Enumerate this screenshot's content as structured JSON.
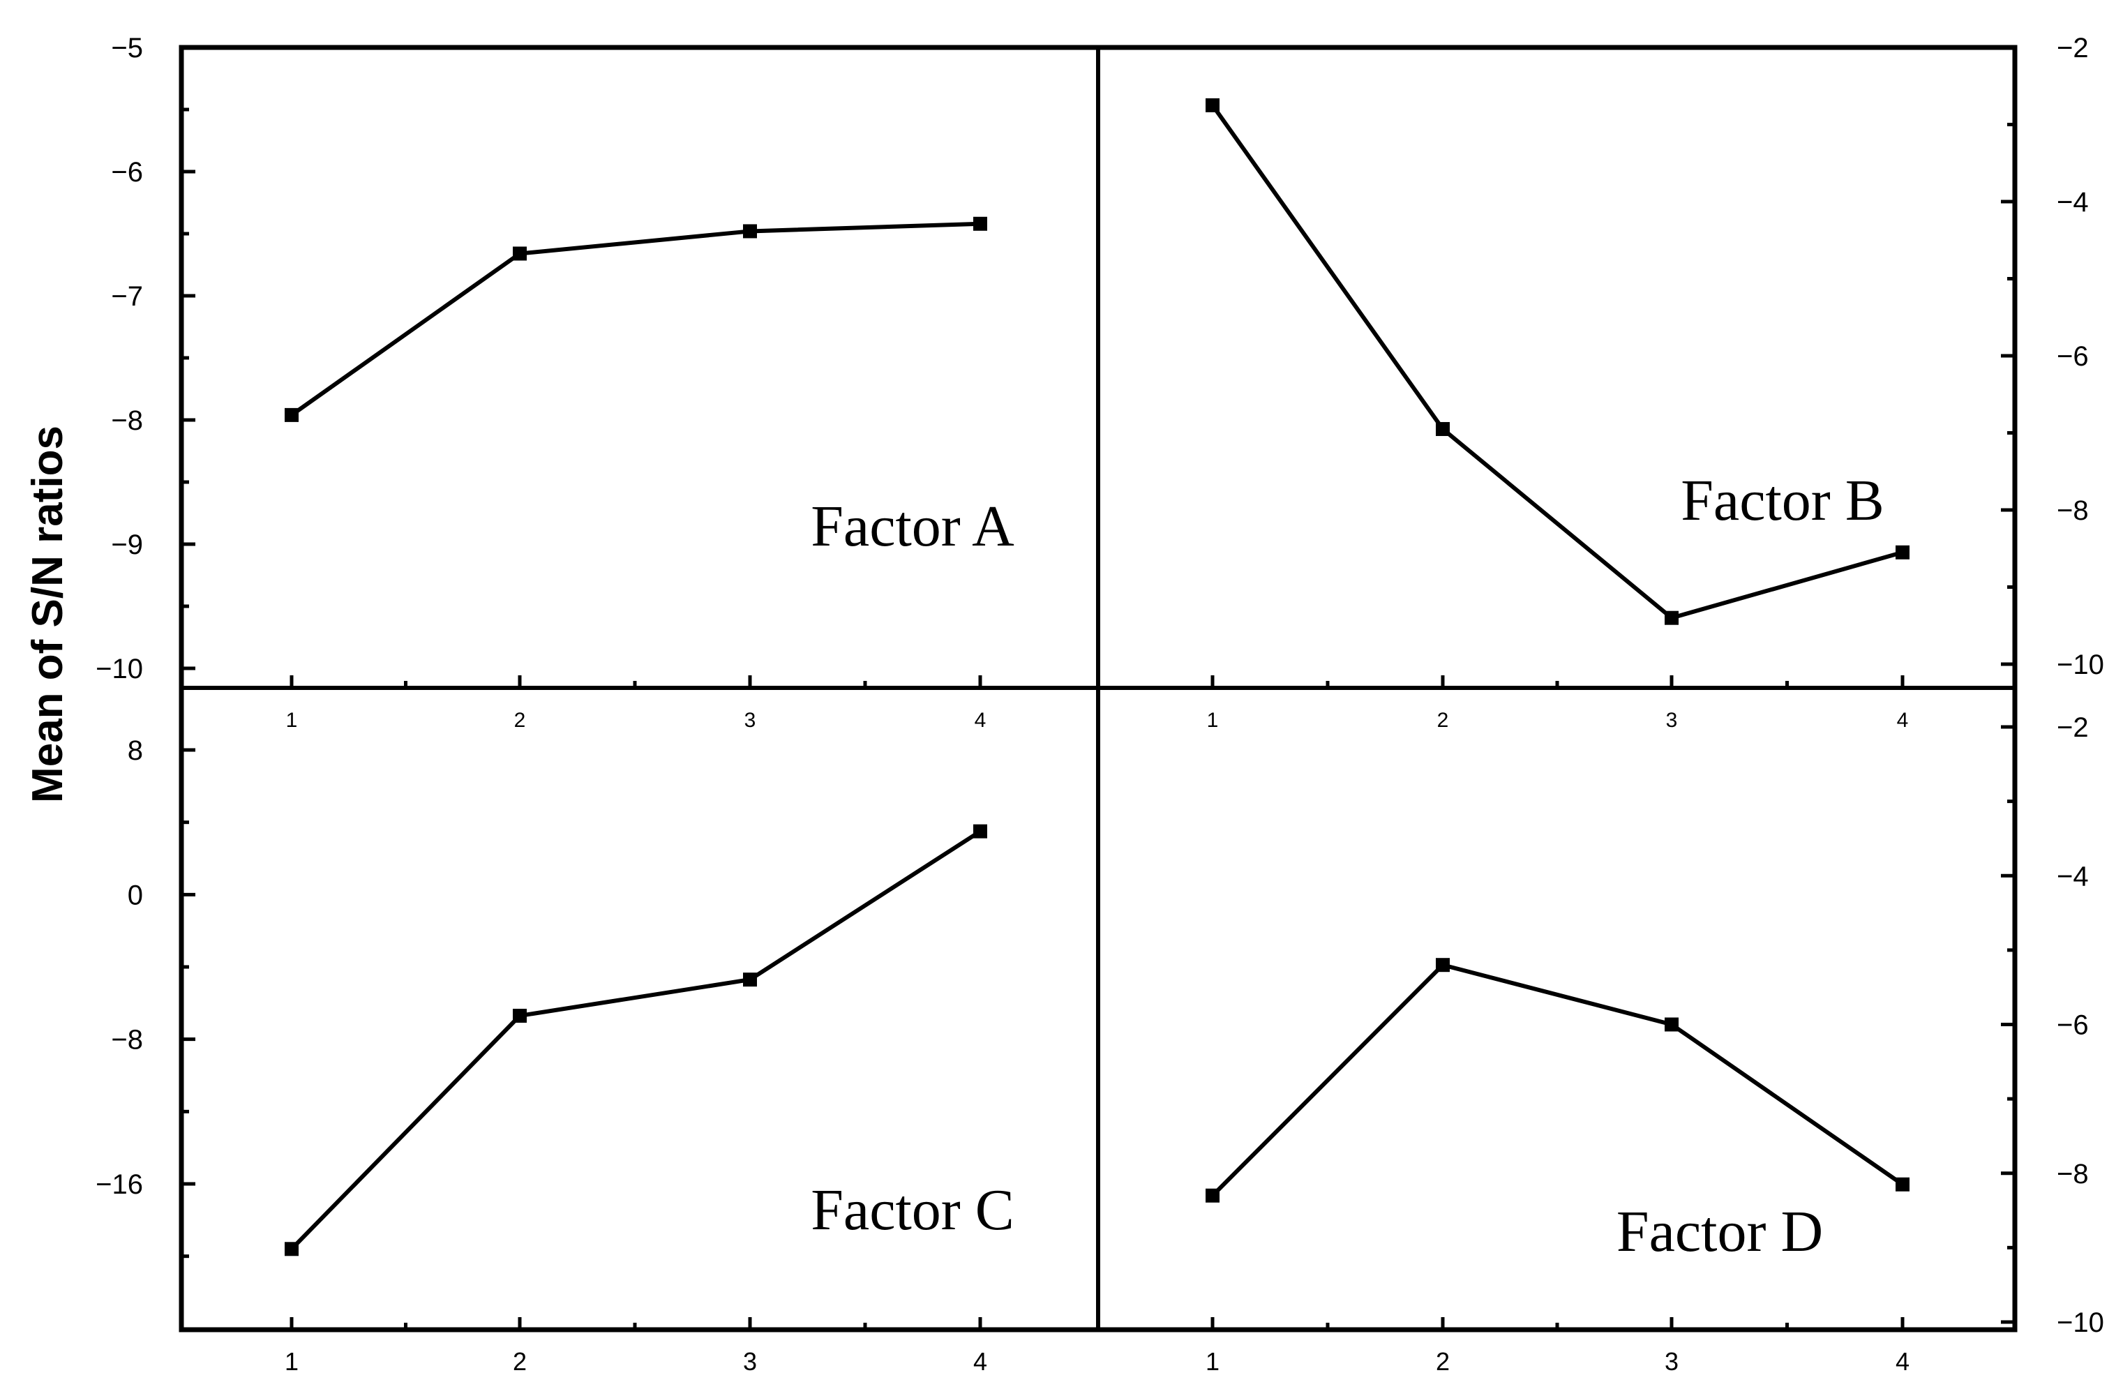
{
  "chart_data": {
    "type": "line",
    "ylabel": "Mean of S/N ratios",
    "grid": false,
    "panels": [
      {
        "title": "Factor A",
        "x": [
          1,
          2,
          3,
          4
        ],
        "values": [
          -7.96,
          -6.66,
          -6.48,
          -6.42
        ],
        "ylim": [
          -10,
          -5
        ],
        "yticks": [
          -5,
          -6,
          -7,
          -8,
          -9,
          -10
        ],
        "ytick_labels": [
          "−5",
          "−6",
          "−7",
          "−8",
          "−9",
          "−10"
        ],
        "xtick_labels": [
          "1",
          "2",
          "3",
          "4"
        ]
      },
      {
        "title": "Factor B",
        "x": [
          1,
          2,
          3,
          4
        ],
        "values": [
          -2.75,
          -6.95,
          -9.4,
          -8.55
        ],
        "ylim": [
          -10,
          -2
        ],
        "yticks": [
          -2,
          -4,
          -6,
          -8,
          -10
        ],
        "ytick_labels": [
          "−2",
          "−4",
          "−6",
          "−8",
          "−10"
        ],
        "xtick_labels": [
          "1",
          "2",
          "3",
          "4"
        ]
      },
      {
        "title": "Factor C",
        "x": [
          1,
          2,
          3,
          4
        ],
        "values": [
          -19.6,
          -6.7,
          -4.7,
          3.5
        ],
        "ylim": [
          -22,
          10
        ],
        "yticks": [
          8,
          0,
          -8,
          -16
        ],
        "ytick_labels": [
          "8",
          "0",
          "−8",
          "−16"
        ],
        "xtick_labels": [
          "1",
          "2",
          "3",
          "4"
        ]
      },
      {
        "title": "Factor D",
        "x": [
          1,
          2,
          3,
          4
        ],
        "values": [
          -8.3,
          -5.2,
          -6.0,
          -8.15
        ],
        "ylim": [
          -10,
          -2
        ],
        "yticks": [
          -2,
          -4,
          -6,
          -8,
          -10
        ],
        "ytick_labels": [
          "−2",
          "−4",
          "−6",
          "−8",
          "−10"
        ],
        "xtick_labels": [
          "1",
          "2",
          "3",
          "4"
        ]
      }
    ]
  }
}
